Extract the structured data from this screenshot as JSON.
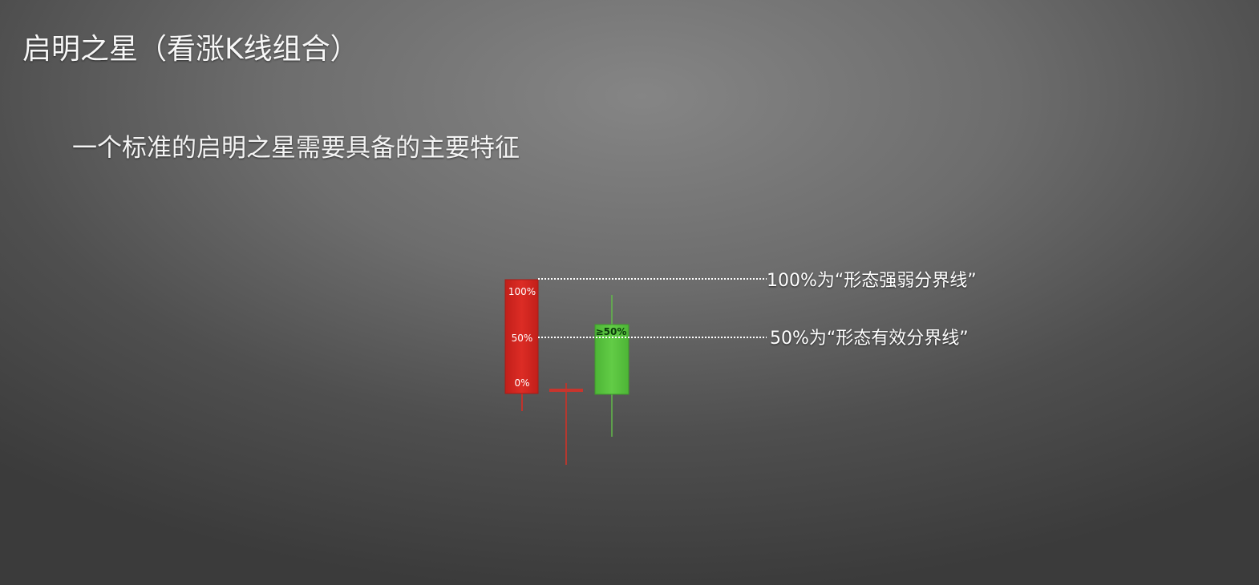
{
  "slide": {
    "title": "启明之星（看涨K线组合）",
    "subtitle": "一个标准的启明之星需要具备的主要特征"
  },
  "figure": {
    "candles": [
      {
        "name": "first-candle",
        "color": "#d42a24",
        "direction": "bearish"
      },
      {
        "name": "star-candle",
        "color": "#c8352d",
        "direction": "doji"
      },
      {
        "name": "third-candle",
        "color": "#5ac43e",
        "direction": "bullish"
      }
    ],
    "levels": {
      "top": "100%",
      "middle": "50%",
      "bottom": "0%",
      "third_candle_label": "≥50%"
    },
    "annotations": {
      "line_100": "100%为“形态强弱分界线”",
      "line_50": "50%为“形态有效分界线”"
    }
  }
}
